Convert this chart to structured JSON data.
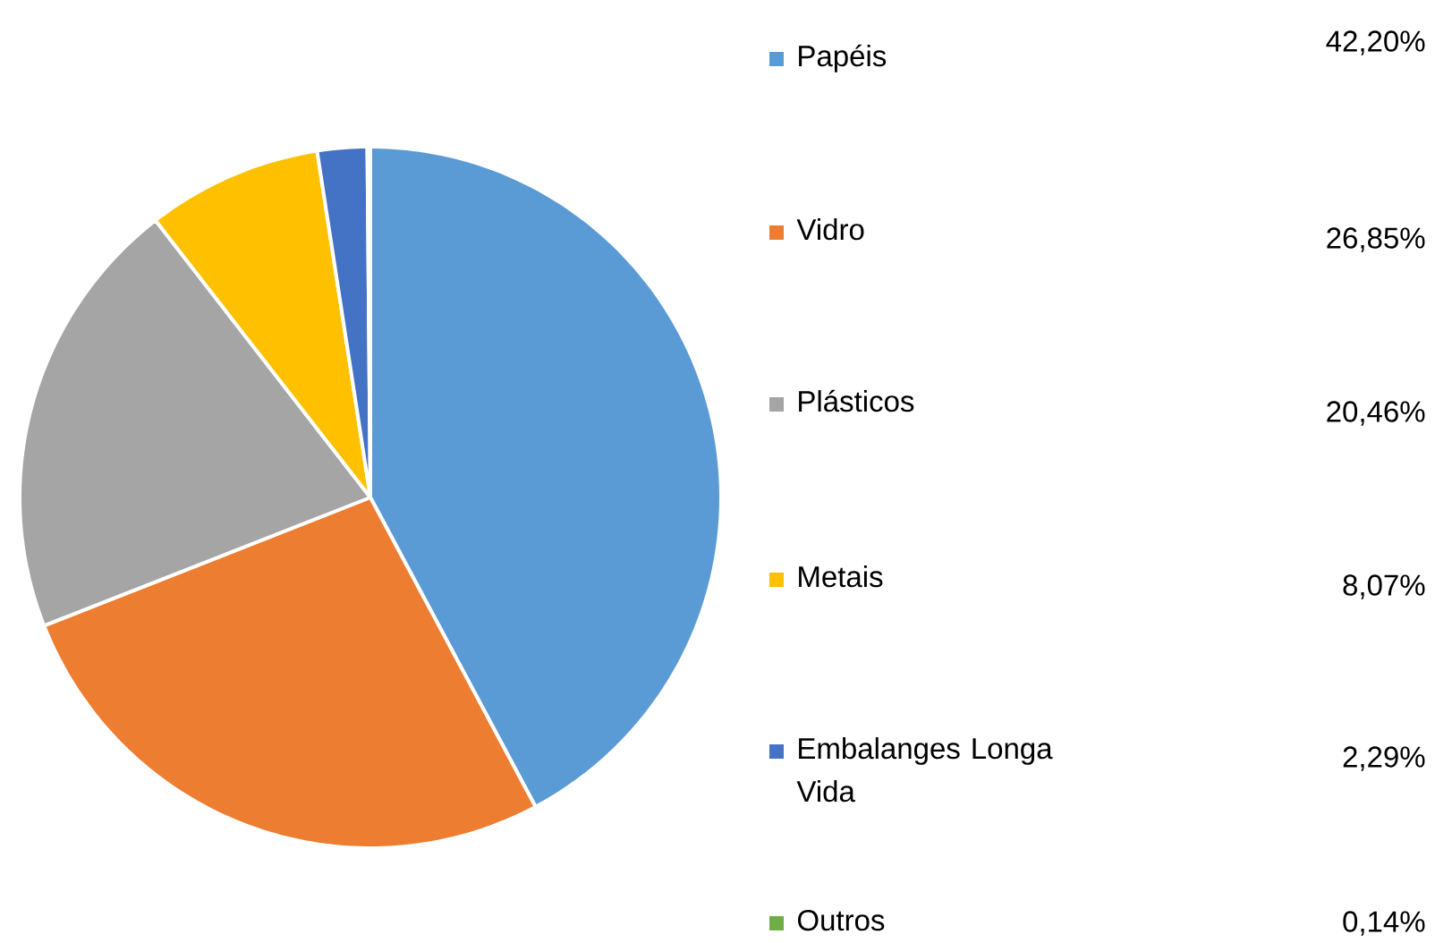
{
  "chart_data": {
    "type": "pie",
    "categories": [
      "Papéis",
      "Vidro",
      "Plásticos",
      "Metais",
      "Embalanges Longa Vida",
      "Outros"
    ],
    "values": [
      42.2,
      26.85,
      20.46,
      8.07,
      2.29,
      0.14
    ],
    "colors": [
      "#5b9bd5",
      "#ed7d31",
      "#a5a5a5",
      "#ffc000",
      "#4472c4",
      "#70ad47"
    ],
    "value_labels": [
      "42,20%",
      "26,85%",
      "20,46%",
      "8,07%",
      "2,29%",
      "0,14%"
    ],
    "legend": "right"
  }
}
